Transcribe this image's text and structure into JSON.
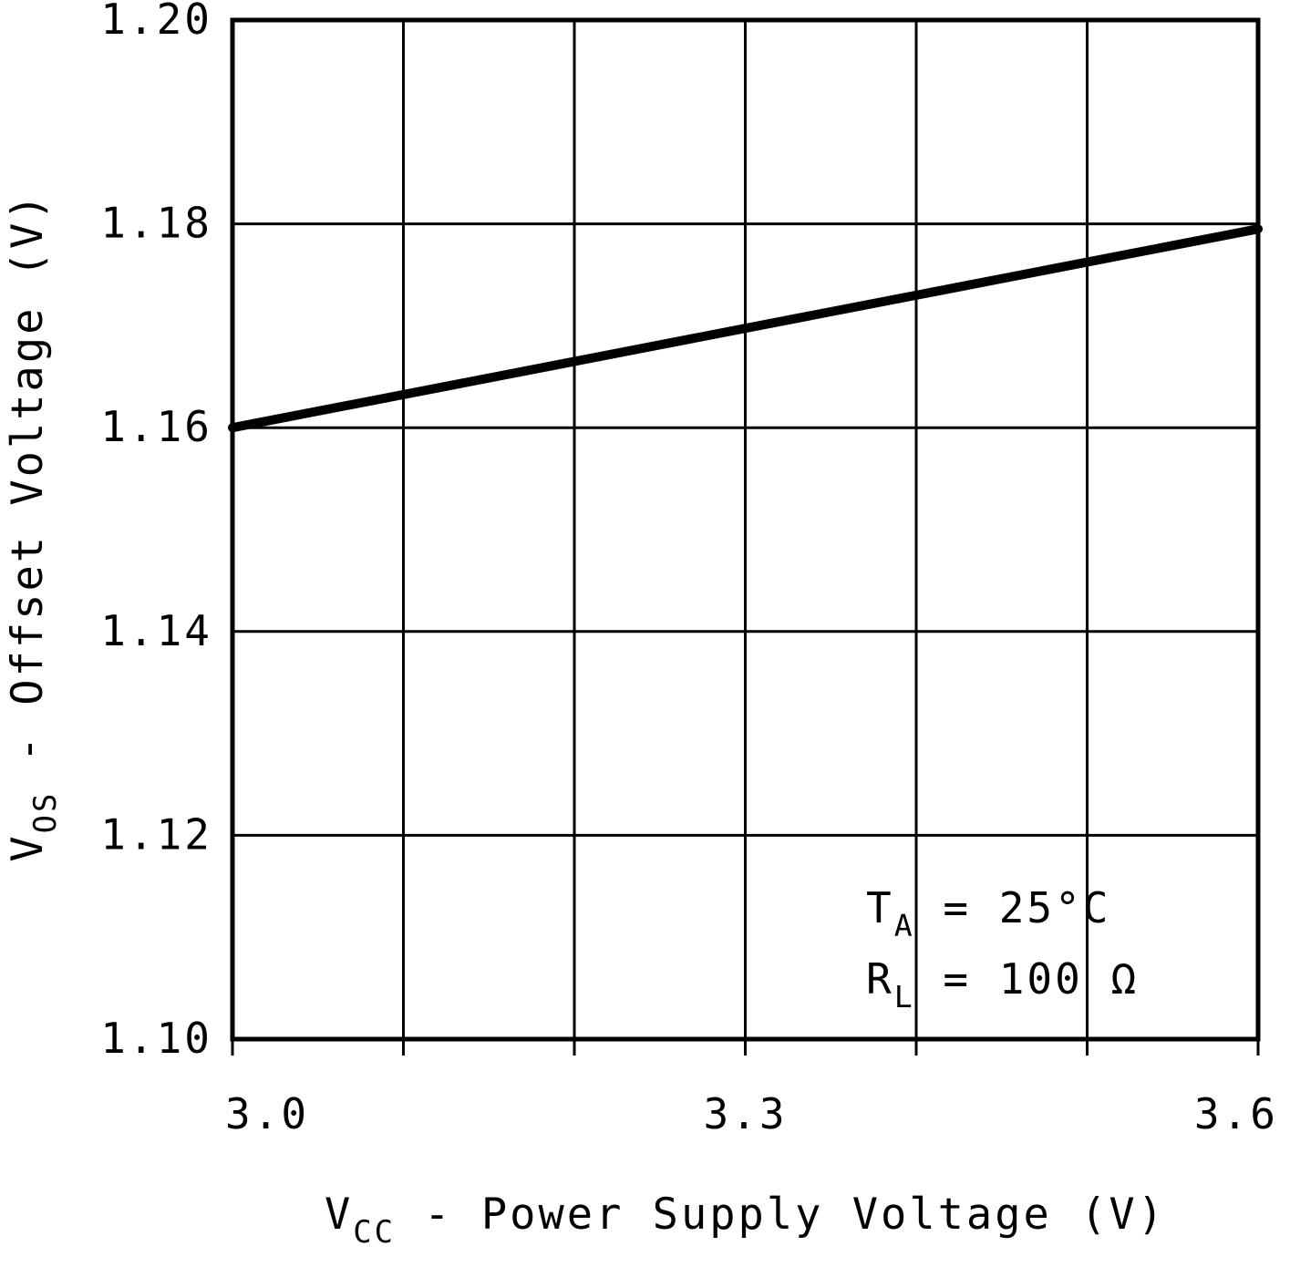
{
  "chart_data": {
    "type": "line",
    "title": "",
    "xlabel_pre": "V",
    "xlabel_sub": "CC",
    "xlabel_post": " - Power Supply Voltage (V)",
    "ylabel_pre": "V",
    "ylabel_sub": "OS",
    "ylabel_post": " - Offset Voltage (V)",
    "xlim": [
      3.0,
      3.6
    ],
    "ylim": [
      1.1,
      1.2
    ],
    "x_ticks": [
      3.0,
      3.1,
      3.2,
      3.3,
      3.4,
      3.5,
      3.6
    ],
    "x_tick_labels": [
      {
        "value": 3.0,
        "label": "3.0"
      },
      {
        "value": 3.3,
        "label": "3.3"
      },
      {
        "value": 3.6,
        "label": "3.6"
      }
    ],
    "y_ticks": [
      1.1,
      1.12,
      1.14,
      1.16,
      1.18,
      1.2
    ],
    "y_tick_labels": [
      {
        "value": 1.1,
        "label": "1.10"
      },
      {
        "value": 1.12,
        "label": "1.12"
      },
      {
        "value": 1.14,
        "label": "1.14"
      },
      {
        "value": 1.16,
        "label": "1.16"
      },
      {
        "value": 1.18,
        "label": "1.18"
      },
      {
        "value": 1.2,
        "label": "1.20"
      }
    ],
    "grid": true,
    "x": [
      3.0,
      3.6
    ],
    "y": [
      1.16,
      1.1795
    ],
    "annotations": [
      {
        "pre": "T",
        "sub": "A",
        "post": " = 25°C"
      },
      {
        "pre": "R",
        "sub": "L",
        "post": " = 100 Ω"
      }
    ],
    "colors": {
      "line": "#000000",
      "grid": "#000000",
      "border": "#000000",
      "background": "#ffffff",
      "text": "#000000"
    }
  }
}
